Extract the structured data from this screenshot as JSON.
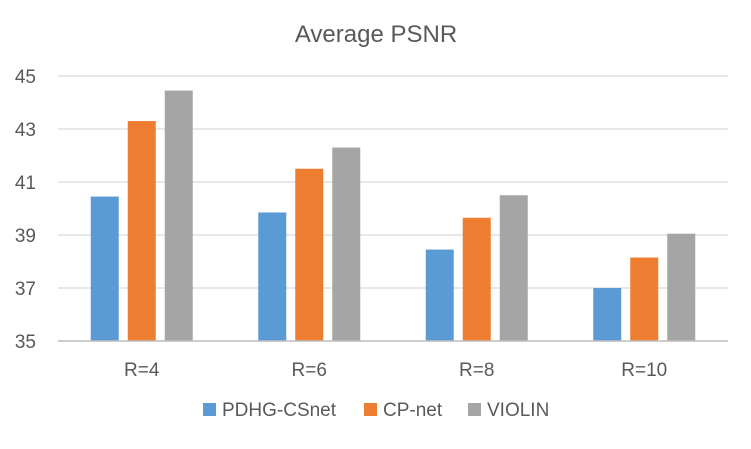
{
  "chart_data": {
    "type": "bar",
    "title": "Average PSNR",
    "xlabel": "",
    "ylabel": "",
    "categories": [
      "R=4",
      "R=6",
      "R=8",
      "R=10"
    ],
    "series": [
      {
        "name": "PDHG-CSnet",
        "color": "#5B9BD5",
        "values": [
          40.45,
          39.85,
          38.45,
          37.0
        ]
      },
      {
        "name": "CP-net",
        "color": "#ED7D31",
        "values": [
          43.3,
          41.5,
          39.65,
          38.15
        ]
      },
      {
        "name": "VIOLIN",
        "color": "#A5A5A5",
        "values": [
          44.45,
          42.3,
          40.5,
          39.05
        ]
      }
    ],
    "ylim": [
      35,
      45
    ],
    "yticks": [
      "35",
      "37",
      "39",
      "41",
      "43",
      "45"
    ],
    "grid": true,
    "legend": "bottom"
  }
}
